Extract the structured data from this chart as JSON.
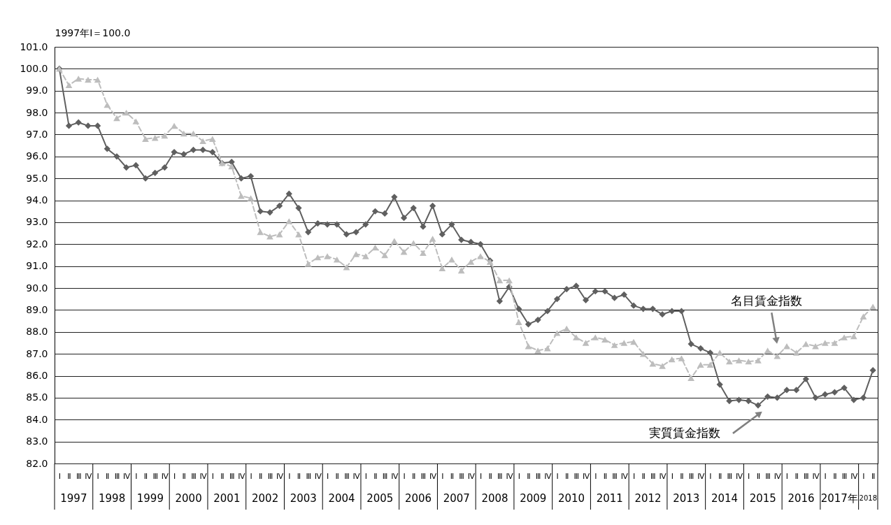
{
  "chart_data": {
    "type": "line",
    "ylabel": "1997年Ⅰ＝100.0",
    "categories": [
      "Ⅰ",
      "Ⅱ",
      "Ⅲ",
      "Ⅳ",
      "Ⅰ",
      "Ⅱ",
      "Ⅲ",
      "Ⅳ",
      "Ⅰ",
      "Ⅱ",
      "Ⅲ",
      "Ⅳ",
      "Ⅰ",
      "Ⅱ",
      "Ⅲ",
      "Ⅳ",
      "Ⅰ",
      "Ⅱ",
      "Ⅲ",
      "Ⅳ",
      "Ⅰ",
      "Ⅱ",
      "Ⅲ",
      "Ⅳ",
      "Ⅰ",
      "Ⅱ",
      "Ⅲ",
      "Ⅳ",
      "Ⅰ",
      "Ⅱ",
      "Ⅲ",
      "Ⅳ",
      "Ⅰ",
      "Ⅱ",
      "Ⅲ",
      "Ⅳ",
      "Ⅰ",
      "Ⅱ",
      "Ⅲ",
      "Ⅳ",
      "Ⅰ",
      "Ⅱ",
      "Ⅲ",
      "Ⅳ",
      "Ⅰ",
      "Ⅱ",
      "Ⅲ",
      "Ⅳ",
      "Ⅰ",
      "Ⅱ",
      "Ⅲ",
      "Ⅳ",
      "Ⅰ",
      "Ⅱ",
      "Ⅲ",
      "Ⅳ",
      "Ⅰ",
      "Ⅱ",
      "Ⅲ",
      "Ⅳ",
      "Ⅰ",
      "Ⅱ",
      "Ⅲ",
      "Ⅳ",
      "Ⅰ",
      "Ⅱ",
      "Ⅲ",
      "Ⅳ",
      "Ⅰ",
      "Ⅱ",
      "Ⅲ",
      "Ⅳ",
      "Ⅰ",
      "Ⅱ",
      "Ⅲ",
      "Ⅳ",
      "Ⅰ",
      "Ⅱ",
      "Ⅲ",
      "Ⅳ",
      "Ⅰ",
      "Ⅱ",
      "Ⅲ",
      "Ⅳ",
      "Ⅰ",
      "Ⅱ"
    ],
    "series": [
      {
        "name": "実質賃金指数",
        "color": "#5f5f5f",
        "marker": "diamond",
        "line_style": "solid",
        "values": [
          100.0,
          97.4,
          97.55,
          97.4,
          97.4,
          96.35,
          96.0,
          95.5,
          95.6,
          95.0,
          95.25,
          95.5,
          96.2,
          96.1,
          96.3,
          96.3,
          96.2,
          95.7,
          95.75,
          95.0,
          95.1,
          93.5,
          93.45,
          93.75,
          94.3,
          93.65,
          92.55,
          92.95,
          92.9,
          92.9,
          92.45,
          92.55,
          92.9,
          93.5,
          93.4,
          94.15,
          93.2,
          93.65,
          92.8,
          93.75,
          92.45,
          92.9,
          92.2,
          92.1,
          92.0,
          91.25,
          89.4,
          90.05,
          89.05,
          88.35,
          88.55,
          88.95,
          89.5,
          89.95,
          90.1,
          89.45,
          89.85,
          89.85,
          89.55,
          89.7,
          89.2,
          89.05,
          89.05,
          88.8,
          88.95,
          88.95,
          87.45,
          87.25,
          87.05,
          85.6,
          84.85,
          84.9,
          84.85,
          84.65,
          85.05,
          85.0,
          85.35,
          85.35,
          85.85,
          85.0,
          85.15,
          85.25,
          85.45,
          84.9,
          85.0,
          86.25
        ]
      },
      {
        "name": "名目賃金指数",
        "color": "#bdbdbd",
        "marker": "triangle",
        "line_style": "dashed",
        "values": [
          100.0,
          99.25,
          99.55,
          99.5,
          99.5,
          98.35,
          97.75,
          98.0,
          97.6,
          96.8,
          96.85,
          96.95,
          97.4,
          97.05,
          97.05,
          96.7,
          96.8,
          95.7,
          95.55,
          94.2,
          94.1,
          92.55,
          92.35,
          92.45,
          93.05,
          92.45,
          91.1,
          91.4,
          91.45,
          91.3,
          90.95,
          91.55,
          91.45,
          91.85,
          91.5,
          92.15,
          91.65,
          92.05,
          91.6,
          92.25,
          90.9,
          91.3,
          90.8,
          91.2,
          91.45,
          91.2,
          90.35,
          90.35,
          88.45,
          87.35,
          87.15,
          87.25,
          87.95,
          88.15,
          87.75,
          87.5,
          87.75,
          87.65,
          87.4,
          87.5,
          87.55,
          87.0,
          86.55,
          86.45,
          86.75,
          86.8,
          85.9,
          86.5,
          86.5,
          87.05,
          86.65,
          86.7,
          86.65,
          86.7,
          87.15,
          86.9,
          87.35,
          87.05,
          87.45,
          87.35,
          87.5,
          87.5,
          87.75,
          87.8,
          88.7,
          89.15
        ]
      }
    ],
    "ylim": [
      82,
      101
    ],
    "yticks": [
      {
        "value": 82,
        "label": "82.0"
      },
      {
        "value": 83,
        "label": "83.0"
      },
      {
        "value": 84,
        "label": "84.0"
      },
      {
        "value": 85,
        "label": "85.0"
      },
      {
        "value": 86,
        "label": "86.0"
      },
      {
        "value": 87,
        "label": "87.0"
      },
      {
        "value": 88,
        "label": "88.0"
      },
      {
        "value": 89,
        "label": "89.0"
      },
      {
        "value": 90,
        "label": "90.0"
      },
      {
        "value": 91,
        "label": "91.0"
      },
      {
        "value": 92,
        "label": "92.0"
      },
      {
        "value": 93,
        "label": "93.0"
      },
      {
        "value": 94,
        "label": "94.0"
      },
      {
        "value": 95,
        "label": "95.0"
      },
      {
        "value": 96,
        "label": "96.0"
      },
      {
        "value": 97,
        "label": "97.0"
      },
      {
        "value": 98,
        "label": "98.0"
      },
      {
        "value": 99,
        "label": "99.0"
      },
      {
        "value": 100,
        "label": "100.0"
      },
      {
        "value": 101,
        "label": "101.0"
      }
    ],
    "grid": "y",
    "annotations": [
      "1997",
      "1998",
      "1999",
      "2000",
      "2001",
      "2002",
      "2003",
      "2004",
      "2005",
      "2006",
      "2007",
      "2008",
      "2009",
      "2010",
      "2011",
      "2012",
      "2013",
      "2014",
      "2015",
      "2016",
      "2017年",
      "2018"
    ]
  }
}
